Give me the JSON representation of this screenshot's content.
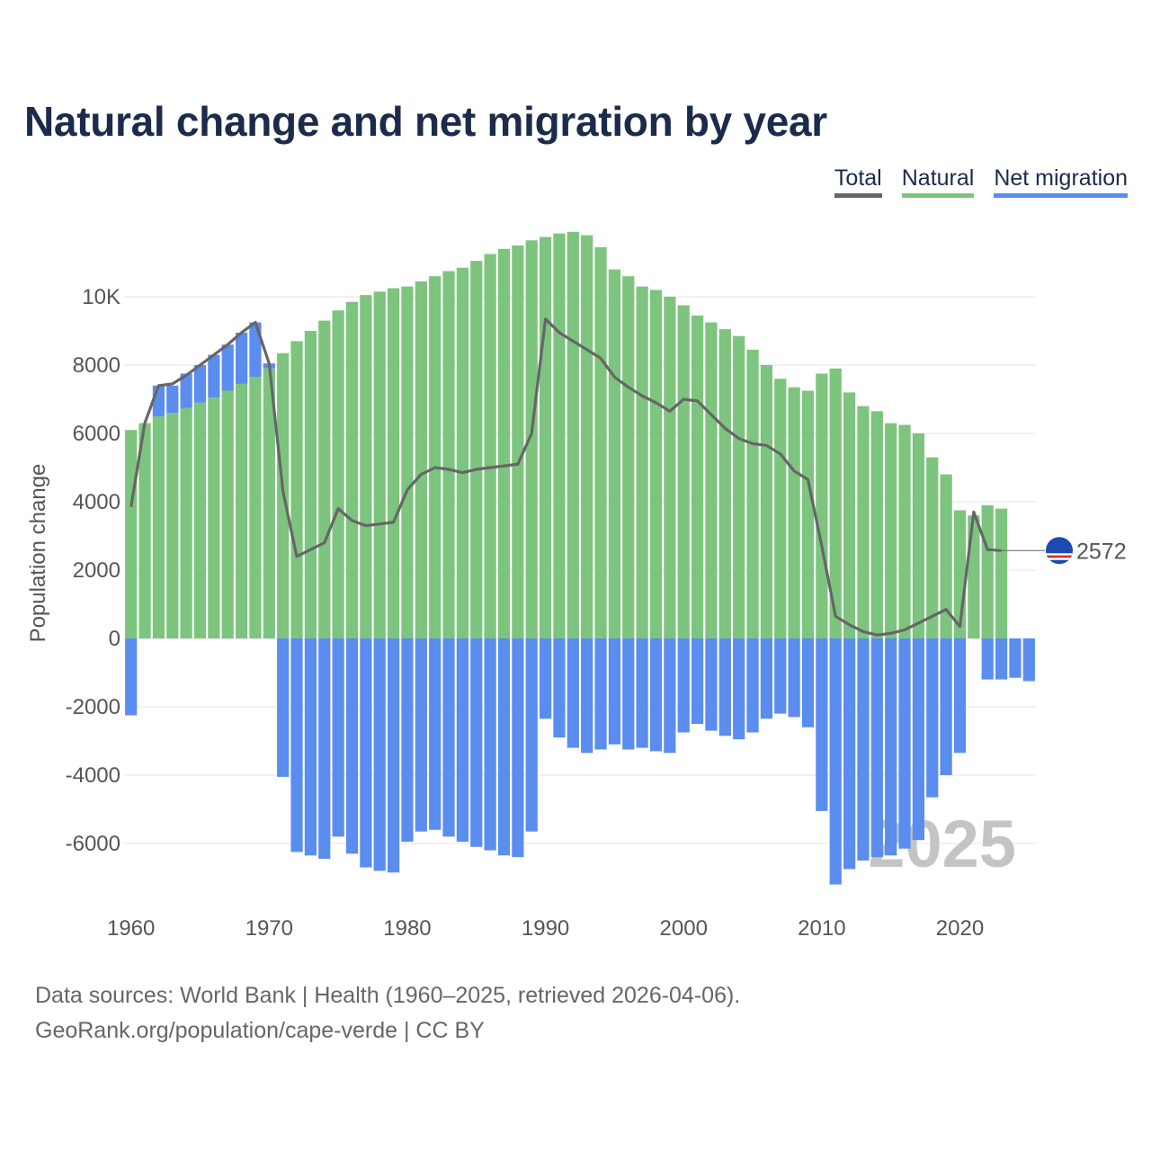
{
  "title": "Natural change and net migration by year",
  "legend": {
    "total": "Total",
    "natural": "Natural",
    "net_migration": "Net migration"
  },
  "colors": {
    "natural": "#7dc47e",
    "net_migration": "#5b8def",
    "total": "#666666",
    "title": "#1b2b4b"
  },
  "source": {
    "line1": "Data sources: World Bank | Health (1960–2025, retrieved 2026-04-06).",
    "line2": "GeoRank.org/population/cape-verde | CC BY"
  },
  "chart_data": {
    "type": "bar",
    "title": "Natural change and net migration by year",
    "ylabel": "Population change",
    "xlabel": "",
    "ylim": [
      -7200,
      12000
    ],
    "xlim": [
      1959.5,
      2025.5
    ],
    "y_ticks": [
      -6000,
      -4000,
      -2000,
      0,
      2000,
      4000,
      6000,
      8000,
      10000
    ],
    "y_tick_labels": [
      "-6000",
      "-4000",
      "-2000",
      "0",
      "2000",
      "4000",
      "6000",
      "8000",
      "10K"
    ],
    "x_ticks": [
      1960,
      1970,
      1980,
      1990,
      2000,
      2010,
      2020
    ],
    "x_tick_labels": [
      "1960",
      "1970",
      "1980",
      "1990",
      "2000",
      "2010",
      "2020"
    ],
    "years": [
      1960,
      1961,
      1962,
      1963,
      1964,
      1965,
      1966,
      1967,
      1968,
      1969,
      1970,
      1971,
      1972,
      1973,
      1974,
      1975,
      1976,
      1977,
      1978,
      1979,
      1980,
      1981,
      1982,
      1983,
      1984,
      1985,
      1986,
      1987,
      1988,
      1989,
      1990,
      1991,
      1992,
      1993,
      1994,
      1995,
      1996,
      1997,
      1998,
      1999,
      2000,
      2001,
      2002,
      2003,
      2004,
      2005,
      2006,
      2007,
      2008,
      2009,
      2010,
      2011,
      2012,
      2013,
      2014,
      2015,
      2016,
      2017,
      2018,
      2019,
      2020,
      2021,
      2022,
      2023,
      2024,
      2025
    ],
    "series": [
      {
        "name": "Natural",
        "values": [
          6100,
          6300,
          6500,
          6600,
          6750,
          6900,
          7050,
          7250,
          7450,
          7650,
          7900,
          8350,
          8700,
          9000,
          9300,
          9600,
          9850,
          10050,
          10150,
          10250,
          10300,
          10450,
          10600,
          10750,
          10850,
          11050,
          11250,
          11400,
          11500,
          11650,
          11750,
          11850,
          11900,
          11800,
          11450,
          10800,
          10600,
          10300,
          10200,
          10000,
          9750,
          9450,
          9250,
          9050,
          8850,
          8450,
          8000,
          7600,
          7350,
          7250,
          7750,
          7900,
          7200,
          6800,
          6650,
          6300,
          6250,
          6000,
          5300,
          4800,
          3750,
          3600,
          3900,
          3800,
          0,
          0
        ]
      },
      {
        "name": "Net migration",
        "values": [
          -2250,
          0,
          900,
          800,
          1000,
          1100,
          1250,
          1350,
          1500,
          1600,
          150,
          -4050,
          -6250,
          -6350,
          -6450,
          -5800,
          -6300,
          -6700,
          -6800,
          -6850,
          -5950,
          -5650,
          -5600,
          -5800,
          -5950,
          -6100,
          -6200,
          -6350,
          -6400,
          -5650,
          -2350,
          -2900,
          -3200,
          -3350,
          -3250,
          -3100,
          -3250,
          -3200,
          -3300,
          -3350,
          -2750,
          -2500,
          -2700,
          -2850,
          -2950,
          -2750,
          -2350,
          -2200,
          -2300,
          -2600,
          -5050,
          -7200,
          -6750,
          -6500,
          -6400,
          -6350,
          -6150,
          -5900,
          -4650,
          -4000,
          -3350,
          0,
          -1200,
          -1200,
          -1150,
          -1250
        ]
      },
      {
        "name": "Total",
        "values": [
          3850,
          6300,
          7400,
          7450,
          7700,
          8000,
          8300,
          8600,
          8950,
          9250,
          8050,
          4300,
          2400,
          2600,
          2800,
          3800,
          3450,
          3300,
          3350,
          3400,
          4350,
          4800,
          5000,
          4950,
          4850,
          4950,
          5000,
          5050,
          5100,
          6000,
          9350,
          8950,
          8700,
          8450,
          8200,
          7650,
          7350,
          7100,
          6900,
          6650,
          7000,
          6950,
          6550,
          6150,
          5850,
          5700,
          5650,
          5400,
          4900,
          4650,
          2700,
          650,
          400,
          200,
          100,
          150,
          250,
          450,
          650,
          850,
          350,
          3700,
          2600,
          2572,
          null,
          null
        ]
      }
    ],
    "end_label": "2572",
    "watermark_year": "2025"
  }
}
